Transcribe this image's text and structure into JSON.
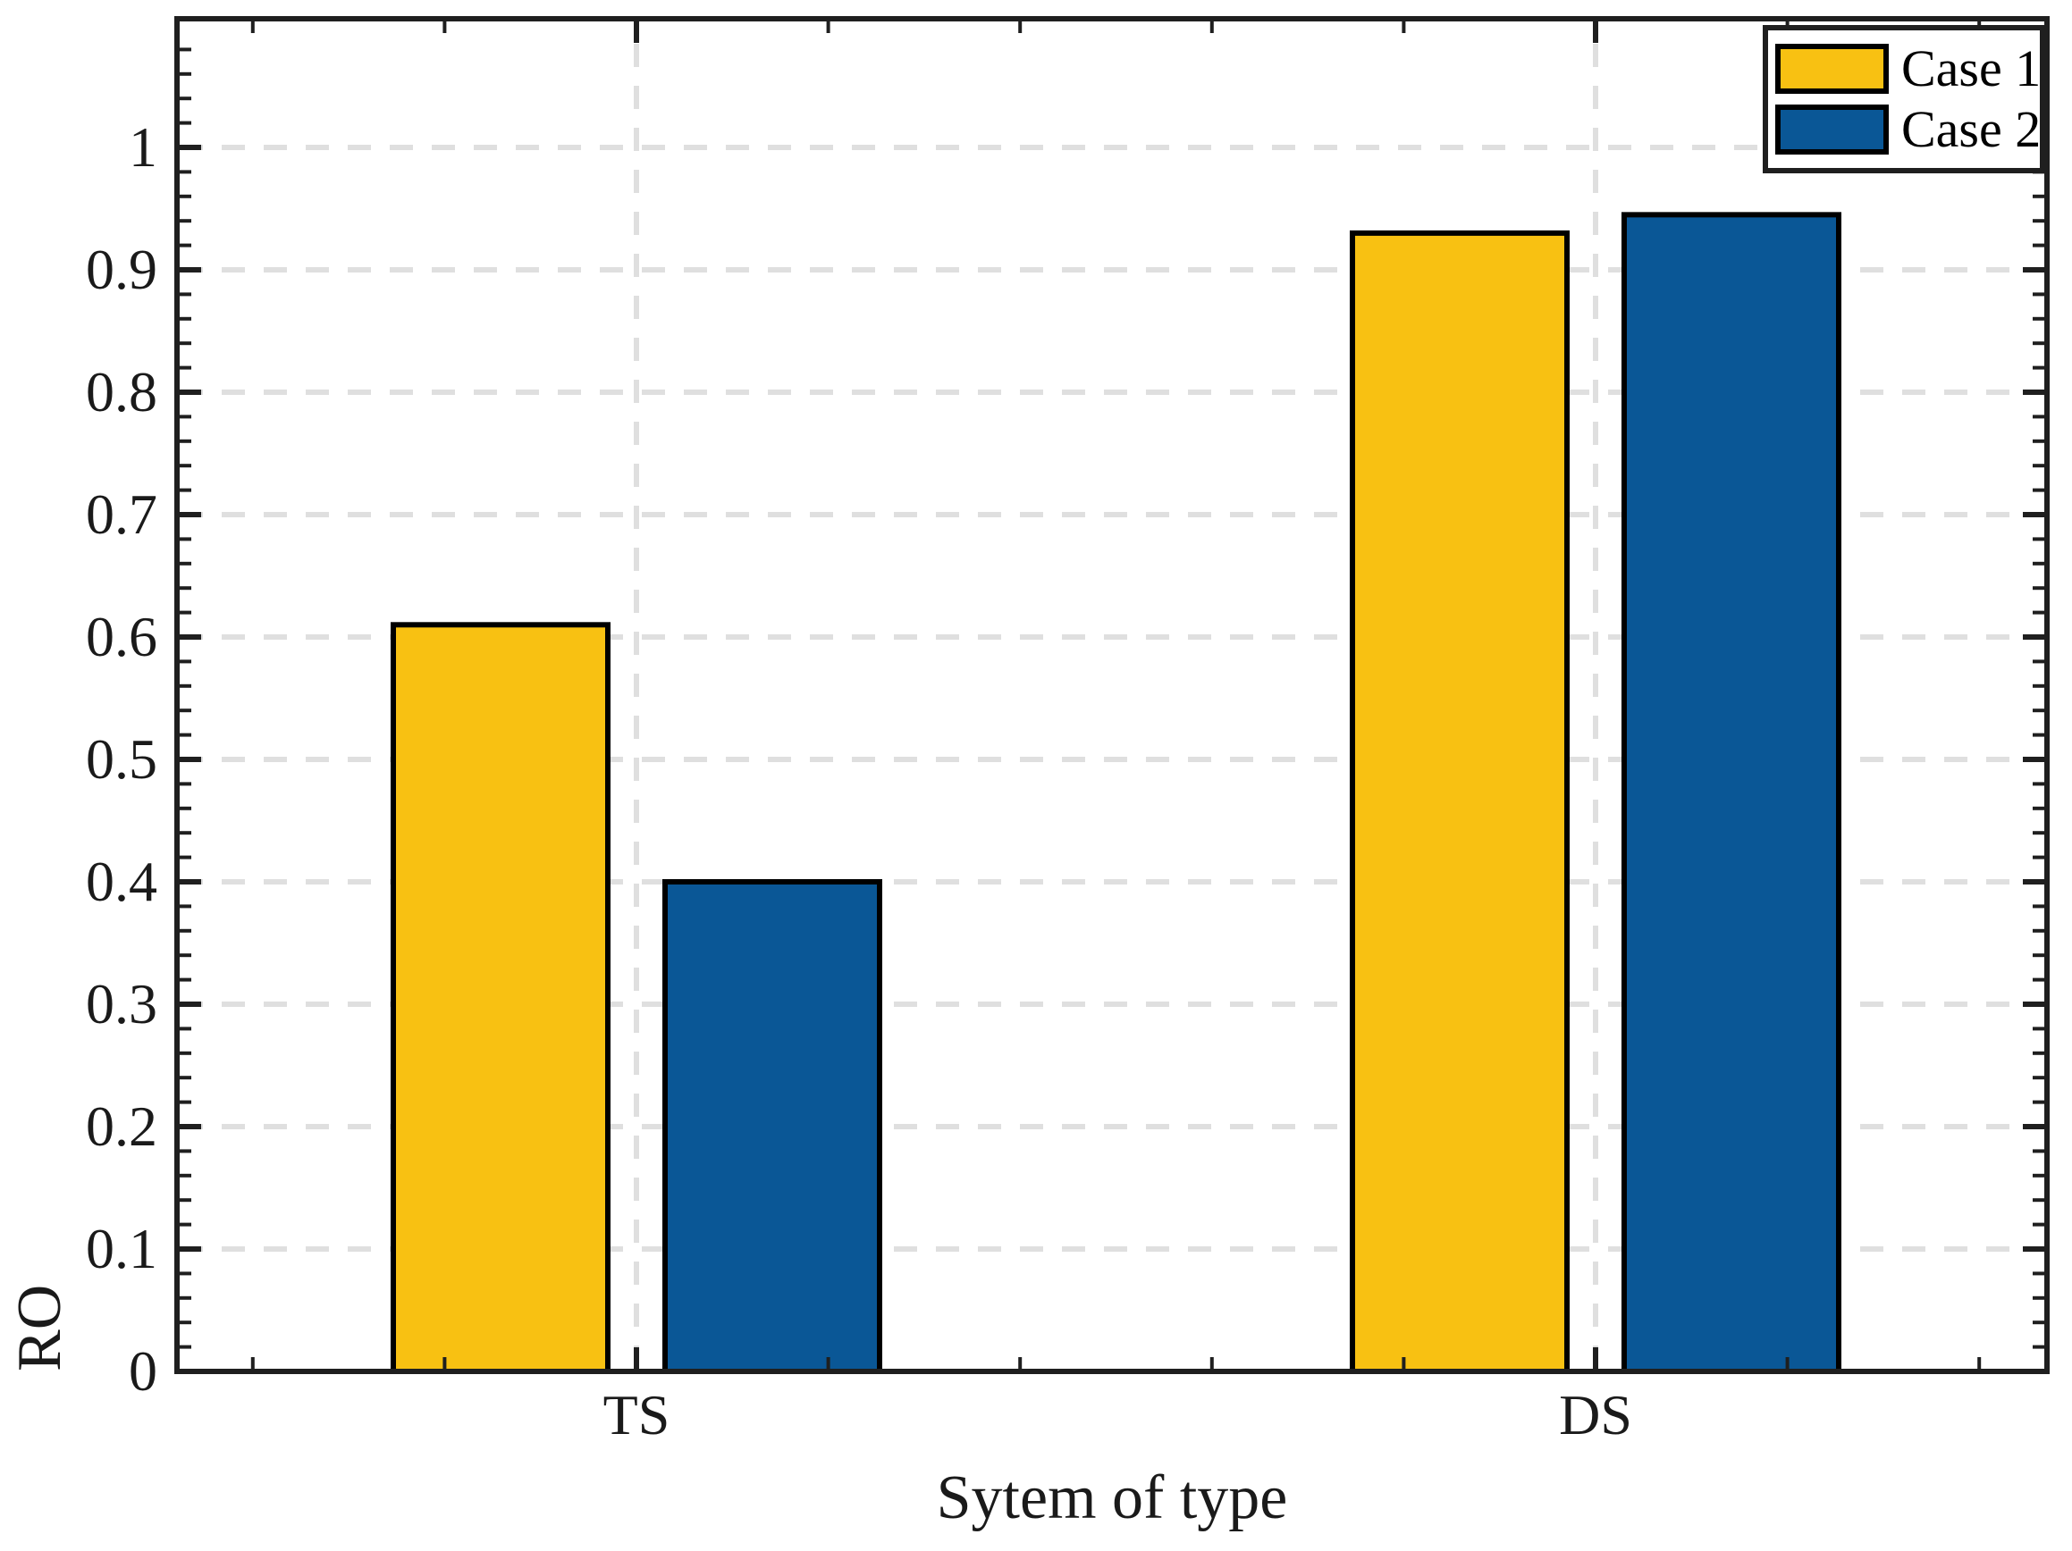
{
  "chart_data": {
    "type": "bar",
    "title": "",
    "xlabel": "Sytem of type",
    "ylabel": "RO",
    "categories": [
      "TS",
      "DS"
    ],
    "series": [
      {
        "name": "Case 1",
        "color": "#F8C112",
        "values": [
          0.61,
          0.93
        ]
      },
      {
        "name": "Case 2",
        "color": "#0A5796",
        "values": [
          0.4,
          0.945
        ]
      }
    ],
    "bar_edge_color": "#000000",
    "ylim": [
      0,
      1.1
    ],
    "yticks": [
      0,
      0.1,
      0.2,
      0.3,
      0.4,
      0.5,
      0.6,
      0.7,
      0.8,
      0.9,
      1
    ],
    "ytick_labels": [
      "0",
      "0.1",
      "0.2",
      "0.3",
      "0.4",
      "0.5",
      "0.6",
      "0.7",
      "0.8",
      "0.9",
      "1"
    ],
    "minor_ytick_step": 0.02,
    "grid": {
      "horizontal": "dashed line at every major ytick",
      "vertical": "dashed line at every category center",
      "style": "dashed",
      "color": "#DFDFDF"
    },
    "axis_color": "#1f1f1f",
    "legend": {
      "position": "top-right",
      "entries": [
        "Case 1",
        "Case 2"
      ]
    }
  }
}
